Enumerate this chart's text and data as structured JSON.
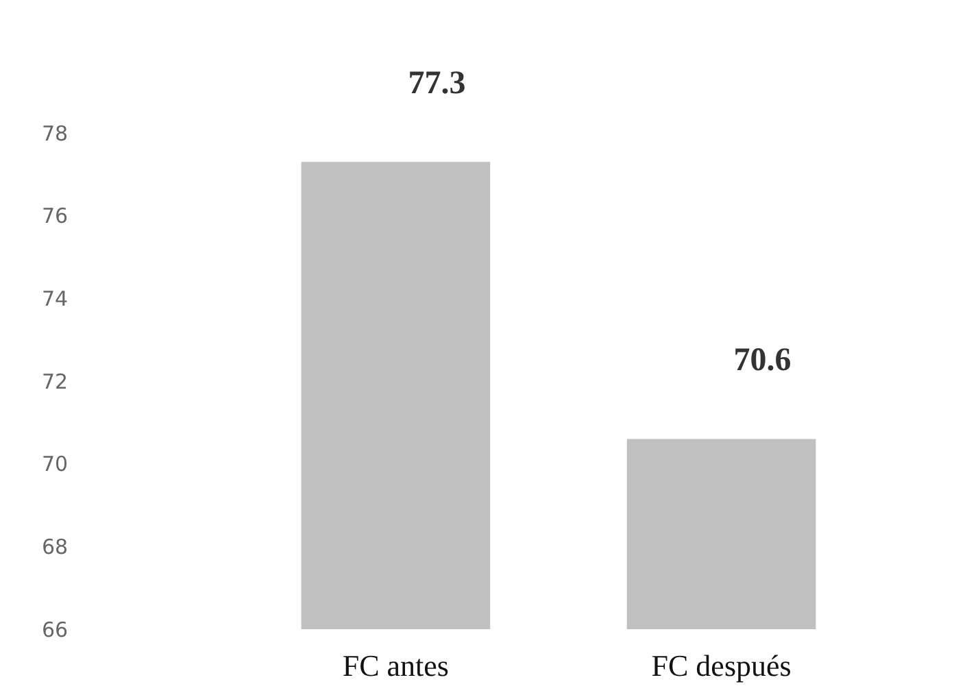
{
  "chart_data": {
    "type": "bar",
    "categories": [
      "FC antes",
      "FC después"
    ],
    "values": [
      77.3,
      70.6
    ],
    "color": "#c0c0c0",
    "ylim": [
      66,
      78
    ],
    "yticks": [
      66,
      68,
      70,
      72,
      74,
      76,
      78
    ],
    "data_labels": true,
    "grid": false
  }
}
